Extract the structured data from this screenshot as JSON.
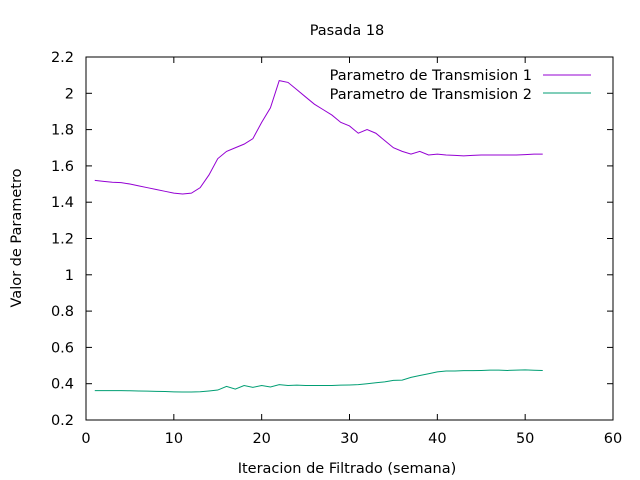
{
  "chart_data": {
    "type": "line",
    "title": "Pasada 18",
    "xlabel": "Iteracion de Filtrado (semana)",
    "ylabel": "Valor de Parametro",
    "xlim": [
      0,
      60
    ],
    "ylim": [
      0.2,
      2.2
    ],
    "xticks": [
      0,
      10,
      20,
      30,
      40,
      50,
      60
    ],
    "yticks": [
      0.2,
      0.4,
      0.6,
      0.8,
      1,
      1.2,
      1.4,
      1.6,
      1.8,
      2,
      2.2
    ],
    "ytick_labels": [
      "0.2",
      "0.4",
      "0.6",
      "0.8",
      "1",
      "1.2",
      "1.4",
      "1.6",
      "1.8",
      "2",
      "2.2"
    ],
    "grid": false,
    "legend_position": "top-right",
    "series": [
      {
        "name": "Parametro de Transmision 1",
        "color": "#9400d3",
        "x": [
          1,
          2,
          3,
          4,
          5,
          6,
          7,
          8,
          9,
          10,
          11,
          12,
          13,
          14,
          15,
          16,
          17,
          18,
          19,
          20,
          21,
          22,
          23,
          24,
          25,
          26,
          27,
          28,
          29,
          30,
          31,
          32,
          33,
          34,
          35,
          36,
          37,
          38,
          39,
          40,
          41,
          42,
          43,
          44,
          45,
          46,
          47,
          48,
          49,
          50,
          51,
          52
        ],
        "y": [
          1.52,
          1.515,
          1.51,
          1.508,
          1.5,
          1.49,
          1.48,
          1.47,
          1.46,
          1.45,
          1.445,
          1.45,
          1.48,
          1.55,
          1.64,
          1.68,
          1.7,
          1.72,
          1.75,
          1.84,
          1.92,
          2.07,
          2.06,
          2.02,
          1.98,
          1.94,
          1.91,
          1.88,
          1.84,
          1.82,
          1.78,
          1.8,
          1.78,
          1.74,
          1.7,
          1.68,
          1.665,
          1.68,
          1.66,
          1.665,
          1.66,
          1.658,
          1.655,
          1.658,
          1.66,
          1.66,
          1.66,
          1.66,
          1.66,
          1.662,
          1.665,
          1.665
        ]
      },
      {
        "name": "Parametro de Transmision 2",
        "color": "#009e73",
        "x": [
          1,
          2,
          3,
          4,
          5,
          6,
          7,
          8,
          9,
          10,
          11,
          12,
          13,
          14,
          15,
          16,
          17,
          18,
          19,
          20,
          21,
          22,
          23,
          24,
          25,
          26,
          27,
          28,
          29,
          30,
          31,
          32,
          33,
          34,
          35,
          36,
          37,
          38,
          39,
          40,
          41,
          42,
          43,
          44,
          45,
          46,
          47,
          48,
          49,
          50,
          51,
          52
        ],
        "y": [
          0.362,
          0.362,
          0.362,
          0.362,
          0.361,
          0.36,
          0.359,
          0.358,
          0.357,
          0.355,
          0.354,
          0.354,
          0.356,
          0.36,
          0.365,
          0.385,
          0.37,
          0.39,
          0.38,
          0.39,
          0.382,
          0.395,
          0.39,
          0.392,
          0.39,
          0.39,
          0.39,
          0.39,
          0.392,
          0.393,
          0.395,
          0.4,
          0.405,
          0.41,
          0.418,
          0.42,
          0.435,
          0.445,
          0.455,
          0.465,
          0.47,
          0.47,
          0.472,
          0.472,
          0.473,
          0.475,
          0.475,
          0.473,
          0.475,
          0.476,
          0.474,
          0.473
        ]
      }
    ]
  }
}
